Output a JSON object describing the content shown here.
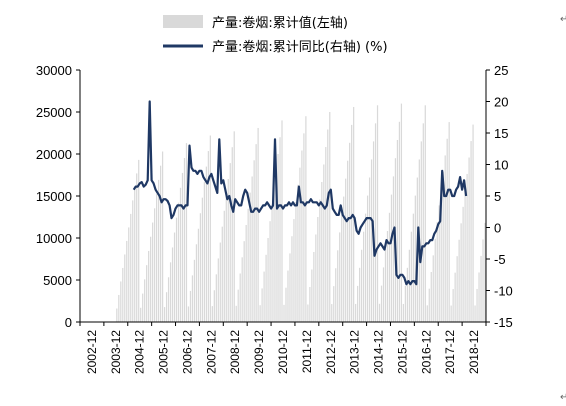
{
  "chart_data": {
    "type": "bar+line",
    "x_labels": [
      "2002-12",
      "2003-12",
      "2004-12",
      "2005-12",
      "2006-12",
      "2007-12",
      "2008-12",
      "2009-12",
      "2010-12",
      "2011-12",
      "2012-12",
      "2013-12",
      "2014-12",
      "2015-12",
      "2016-12",
      "2017-12",
      "2018-12"
    ],
    "legend": [
      {
        "label": "产量:卷烟:累计值(左轴)",
        "color": "#d9d9d9",
        "kind": "bar"
      },
      {
        "label": "产量:卷烟:累计同比(右轴)  (%)",
        "color": "#1f3864",
        "kind": "line"
      }
    ],
    "left_axis": {
      "min": 0,
      "max": 30000,
      "ticks": [
        "0",
        "5000",
        "10000",
        "15000",
        "20000",
        "25000",
        "30000"
      ]
    },
    "right_axis": {
      "min": -15,
      "max": 25,
      "ticks": [
        "-15",
        "-10",
        "-5",
        "0",
        "5",
        "10",
        "15",
        "20",
        "25"
      ]
    },
    "bar_color": "#d9d9d9",
    "line_color": "#1f3864",
    "series": [
      {
        "name": "产量:卷烟:累计值(左轴)",
        "axis": "left",
        "kind": "bar",
        "annual_total": [
          19300,
          20300,
          21300,
          22200,
          22700,
          23100,
          24000,
          24500,
          25000,
          25600,
          25800,
          26000,
          25800,
          23800,
          23500,
          23600
        ],
        "start_year": 2004
      },
      {
        "name": "产量:卷烟:累计同比(右轴)  (%)",
        "axis": "right",
        "kind": "line",
        "values": [
          6.0,
          6.5,
          6.5,
          7.0,
          7.2,
          6.5,
          6.8,
          7.5,
          20.0,
          7.5,
          7.0,
          6.0,
          5.5,
          5.0,
          4.0,
          4.5,
          4.5,
          4.2,
          3.5,
          1.5,
          2.0,
          3.0,
          3.5,
          3.5,
          3.5,
          3.0,
          3.5,
          3.5,
          13.0,
          9.5,
          9.0,
          9.0,
          8.5,
          9.0,
          9.0,
          8.0,
          7.5,
          7.0,
          8.0,
          8.5,
          7.5,
          6.5,
          5.5,
          14.0,
          7.0,
          7.5,
          6.0,
          4.5,
          5.0,
          3.5,
          2.5,
          4.5,
          4.0,
          3.5,
          3.5,
          5.0,
          6.0,
          5.5,
          4.0,
          2.5,
          2.5,
          3.0,
          3.0,
          2.5,
          3.0,
          3.5,
          3.5,
          4.0,
          3.5,
          3.0,
          3.5,
          14.0,
          3.0,
          3.5,
          3.5,
          3.0,
          3.5,
          3.5,
          4.0,
          3.5,
          4.0,
          3.5,
          3.5,
          6.5,
          4.0,
          4.0,
          3.5,
          4.0,
          4.0,
          4.5,
          4.0,
          4.0,
          4.0,
          3.5,
          4.0,
          3.5,
          3.0,
          3.5,
          5.5,
          6.0,
          3.0,
          2.5,
          2.0,
          2.0,
          3.5,
          2.0,
          1.5,
          1.0,
          1.5,
          1.5,
          2.0,
          1.5,
          -0.5,
          -1.0,
          0.0,
          0.5,
          1.0,
          1.5,
          1.5,
          1.5,
          1.0,
          -4.5,
          -3.5,
          -3.0,
          -2.5,
          -3.0,
          -3.5,
          -2.0,
          -2.5,
          -2.5,
          -1.0,
          0.0,
          -7.5,
          -8.0,
          -7.5,
          -7.5,
          -8.0,
          -9.0,
          -8.5,
          -9.0,
          -8.5,
          -8.5,
          -9.0,
          0.0,
          -5.5,
          -3.0,
          -3.0,
          -2.5,
          -2.5,
          -2.0,
          -2.0,
          -1.0,
          -0.5,
          0.5,
          1.0,
          9.0,
          5.0,
          5.0,
          6.0,
          6.0,
          5.0,
          5.0,
          6.0,
          6.5,
          8.0,
          6.0,
          7.5,
          5.0
        ],
        "start": "2004-09"
      }
    ],
    "title": "",
    "grid": false
  }
}
